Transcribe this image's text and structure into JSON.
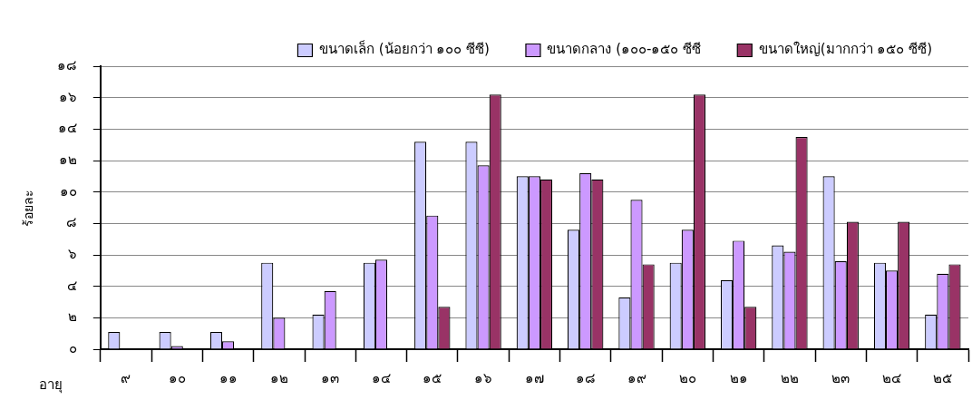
{
  "chart_data": {
    "type": "bar",
    "xlabel": "อายุ",
    "ylabel": "ร้อยละ",
    "categories": [
      "๙",
      "๑๐",
      "๑๑",
      "๑๒",
      "๑๓",
      "๑๔",
      "๑๕",
      "๑๖",
      "๑๗",
      "๑๘",
      "๑๙",
      "๒๐",
      "๒๑",
      "๒๒",
      "๒๓",
      "๒๔",
      "๒๕"
    ],
    "series": [
      {
        "name": "ขนาดเล็ก (น้อยกว่า ๑๐๐ ซีซี)",
        "color": "#ccccff",
        "values": [
          1.1,
          1.1,
          1.1,
          5.5,
          2.2,
          5.5,
          13.2,
          13.2,
          11.0,
          7.6,
          3.3,
          5.5,
          4.4,
          6.6,
          11.0,
          5.5,
          2.2
        ]
      },
      {
        "name": "ขนาดกลาง (๑๐๐-๑๕๐ ซีซี",
        "color": "#cc99ff",
        "values": [
          0,
          0.2,
          0.5,
          2.0,
          3.7,
          5.7,
          8.5,
          11.7,
          11.0,
          11.2,
          9.5,
          7.6,
          6.9,
          6.2,
          5.6,
          5.0,
          4.8
        ]
      },
      {
        "name": "ขนาดใหญ่(มากกว่า ๑๕๐ ซีซี)",
        "color": "#993366",
        "values": [
          0,
          0,
          0,
          0,
          0,
          0,
          2.7,
          16.2,
          10.8,
          10.8,
          5.4,
          16.2,
          2.7,
          13.5,
          8.1,
          8.1,
          5.4
        ]
      }
    ],
    "ylim": [
      0,
      18
    ],
    "yticks": [
      {
        "value": 0,
        "label": "๐"
      },
      {
        "value": 2,
        "label": "๒"
      },
      {
        "value": 4,
        "label": "๔"
      },
      {
        "value": 6,
        "label": "๖"
      },
      {
        "value": 8,
        "label": "๘"
      },
      {
        "value": 10,
        "label": "๑๐"
      },
      {
        "value": 12,
        "label": "๑๒"
      },
      {
        "value": 14,
        "label": "๑๔"
      },
      {
        "value": 16,
        "label": "๑๖"
      },
      {
        "value": 18,
        "label": "๑๘"
      }
    ],
    "grid": "y",
    "legend": "top"
  }
}
